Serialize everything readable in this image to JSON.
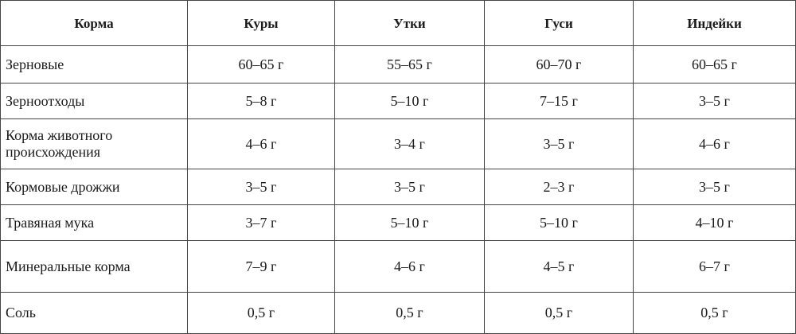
{
  "table": {
    "header": [
      "Корма",
      "Куры",
      "Утки",
      "Гуси",
      "Индейки"
    ],
    "rows": [
      [
        "Зерновые",
        "60–65 г",
        "55–65 г",
        "60–70 г",
        "60–65 г"
      ],
      [
        "Зерноотходы",
        "5–8 г",
        "5–10 г",
        "7–15 г",
        "3–5 г"
      ],
      [
        "Корма животного происхождения",
        "4–6 г",
        "3–4 г",
        "3–5 г",
        "4–6 г"
      ],
      [
        "Кормовые дрожжи",
        "3–5 г",
        "3–5 г",
        "2–3 г",
        "3–5 г"
      ],
      [
        "Травяная мука",
        "3–7 г",
        "5–10 г",
        "5–10 г",
        "4–10 г"
      ],
      [
        "Минеральные корма",
        "7–9 г",
        "4–6 г",
        "4–5 г",
        "6–7 г"
      ],
      [
        "Соль",
        "0,5 г",
        "0,5 г",
        "0,5 г",
        "0,5 г"
      ]
    ]
  }
}
